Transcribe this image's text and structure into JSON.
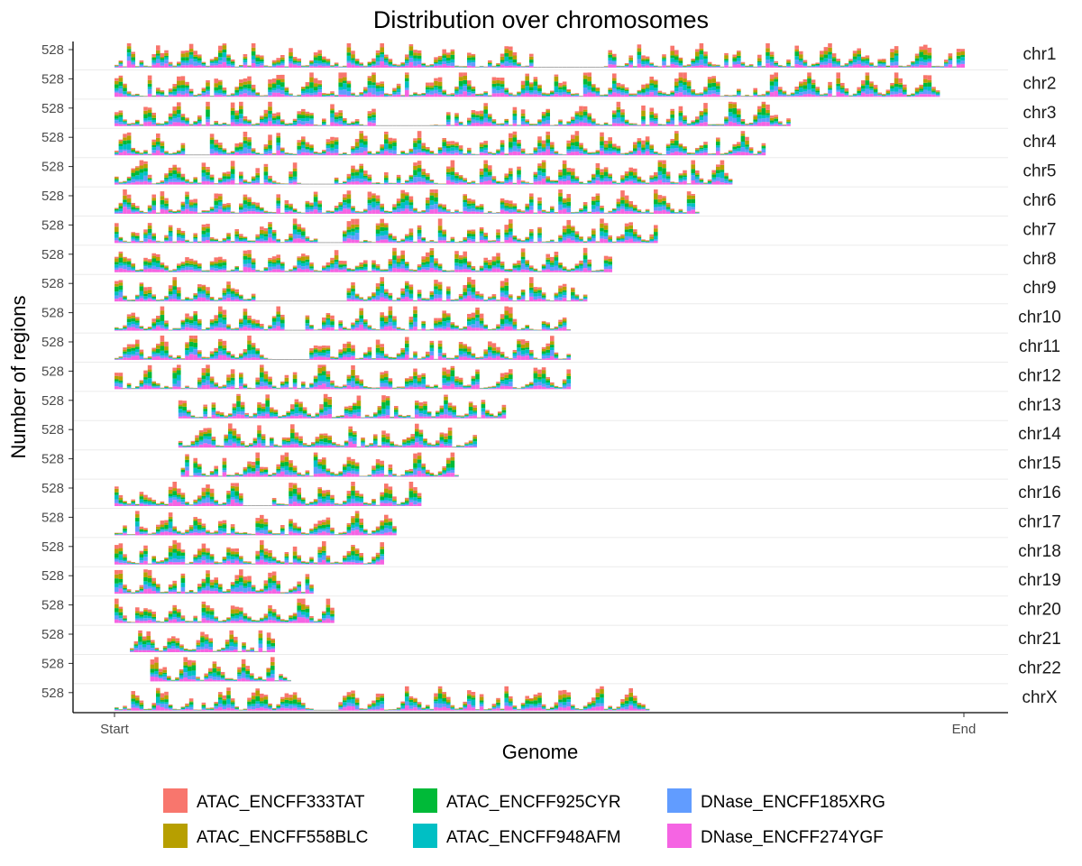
{
  "chart_data": {
    "type": "bar",
    "stacked": true,
    "facet": "rows",
    "title": "Distribution over chromosomes",
    "xlabel": "Genome",
    "ylabel": "Number of regions",
    "x_ticks": [
      "Start",
      "End"
    ],
    "y_tick_label": "528",
    "legend_position": "bottom",
    "grid": false,
    "series": [
      {
        "name": "ATAC_ENCFF333TAT",
        "color": "#F8766D"
      },
      {
        "name": "ATAC_ENCFF558BLC",
        "color": "#B79F00"
      },
      {
        "name": "ATAC_ENCFF925CYR",
        "color": "#00BA38"
      },
      {
        "name": "ATAC_ENCFF948AFM",
        "color": "#00BFC4"
      },
      {
        "name": "DNase_ENCFF185XRG",
        "color": "#619CFF"
      },
      {
        "name": "DNase_ENCFF274YGF",
        "color": "#F564E3"
      }
    ],
    "chromosomes": [
      {
        "name": "chr1",
        "start": 0.0,
        "end": 1.0,
        "gaps": [
          [
            0.493,
            0.575
          ]
        ]
      },
      {
        "name": "chr2",
        "start": 0.0,
        "end": 0.97,
        "gaps": []
      },
      {
        "name": "chr3",
        "start": 0.0,
        "end": 0.795,
        "gaps": [
          [
            0.31,
            0.37
          ]
        ]
      },
      {
        "name": "chr4",
        "start": 0.0,
        "end": 0.765,
        "gaps": [
          [
            0.085,
            0.11
          ]
        ]
      },
      {
        "name": "chr5",
        "start": 0.0,
        "end": 0.73,
        "gaps": [
          [
            0.22,
            0.255
          ]
        ]
      },
      {
        "name": "chr6",
        "start": 0.0,
        "end": 0.69,
        "gaps": []
      },
      {
        "name": "chr7",
        "start": 0.0,
        "end": 0.64,
        "gaps": [
          [
            0.24,
            0.265
          ]
        ]
      },
      {
        "name": "chr8",
        "start": 0.0,
        "end": 0.585,
        "gaps": []
      },
      {
        "name": "chr9",
        "start": 0.0,
        "end": 0.555,
        "gaps": [
          [
            0.17,
            0.27
          ]
        ]
      },
      {
        "name": "chr10",
        "start": 0.0,
        "end": 0.54,
        "gaps": [
          [
            0.2,
            0.22
          ]
        ]
      },
      {
        "name": "chr11",
        "start": 0.0,
        "end": 0.54,
        "gaps": [
          [
            0.19,
            0.225
          ]
        ]
      },
      {
        "name": "chr12",
        "start": 0.0,
        "end": 0.54,
        "gaps": []
      },
      {
        "name": "chr13",
        "start": 0.075,
        "end": 0.46,
        "gaps": []
      },
      {
        "name": "chr14",
        "start": 0.075,
        "end": 0.43,
        "gaps": []
      },
      {
        "name": "chr15",
        "start": 0.078,
        "end": 0.408,
        "gaps": []
      },
      {
        "name": "chr16",
        "start": 0.0,
        "end": 0.362,
        "gaps": [
          [
            0.155,
            0.185
          ]
        ]
      },
      {
        "name": "chr17",
        "start": 0.0,
        "end": 0.335,
        "gaps": []
      },
      {
        "name": "chr18",
        "start": 0.0,
        "end": 0.32,
        "gaps": []
      },
      {
        "name": "chr19",
        "start": 0.0,
        "end": 0.238,
        "gaps": []
      },
      {
        "name": "chr20",
        "start": 0.0,
        "end": 0.258,
        "gaps": []
      },
      {
        "name": "chr21",
        "start": 0.018,
        "end": 0.19,
        "gaps": []
      },
      {
        "name": "chr22",
        "start": 0.042,
        "end": 0.208,
        "gaps": []
      },
      {
        "name": "chrX",
        "start": 0.0,
        "end": 0.63,
        "gaps": [
          [
            0.235,
            0.26
          ]
        ]
      }
    ]
  }
}
